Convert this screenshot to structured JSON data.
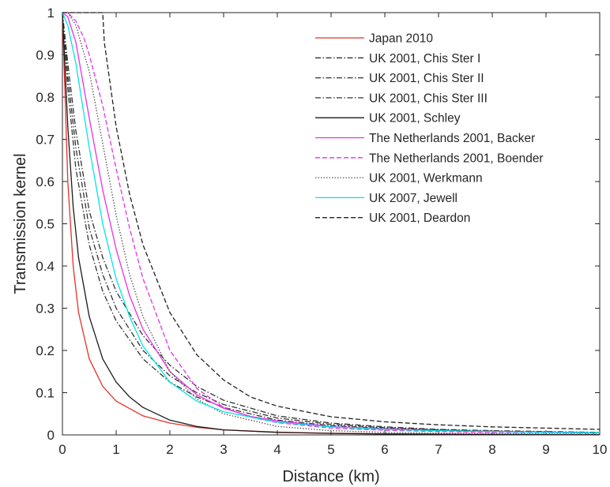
{
  "chart_data": {
    "type": "line",
    "title": "",
    "xlabel": "Distance (km)",
    "ylabel": "Transmission kernel",
    "xlim": [
      0,
      10
    ],
    "ylim": [
      0,
      1
    ],
    "xticks": [
      "0",
      "1",
      "2",
      "3",
      "4",
      "5",
      "6",
      "7",
      "8",
      "9",
      "10"
    ],
    "yticks": [
      "0",
      "0.1",
      "0.2",
      "0.3",
      "0.4",
      "0.5",
      "0.6",
      "0.7",
      "0.8",
      "0.9",
      "1"
    ],
    "grid": false,
    "legend_position": "top-right",
    "series": [
      {
        "name": "Japan 2010",
        "color": "#e8302a",
        "dash": "solid",
        "x": [
          0,
          0.1,
          0.2,
          0.3,
          0.5,
          0.75,
          1,
          1.5,
          2,
          2.5,
          3,
          4,
          5,
          6,
          7,
          8,
          9,
          10
        ],
        "y": [
          1,
          0.6,
          0.4,
          0.29,
          0.18,
          0.115,
          0.08,
          0.045,
          0.028,
          0.018,
          0.012,
          0.0065,
          0.004,
          0.0027,
          0.0019,
          0.0014,
          0.001,
          0.0008
        ]
      },
      {
        "name": "UK 2001, Chis Ster I",
        "color": "#333333",
        "dash": "dashdot",
        "x": [
          0,
          0.1,
          0.25,
          0.5,
          0.75,
          1,
          1.5,
          2,
          2.5,
          3,
          4,
          5,
          6,
          7,
          8,
          9,
          10
        ],
        "y": [
          1,
          0.82,
          0.63,
          0.45,
          0.34,
          0.27,
          0.18,
          0.125,
          0.09,
          0.065,
          0.035,
          0.022,
          0.015,
          0.011,
          0.008,
          0.0065,
          0.005
        ]
      },
      {
        "name": "UK 2001, Chis Ster II",
        "color": "#333333",
        "dash": "dashdot",
        "x": [
          0,
          0.1,
          0.25,
          0.5,
          0.75,
          1,
          1.5,
          2,
          2.5,
          3,
          4,
          5,
          6,
          7,
          8,
          9,
          10
        ],
        "y": [
          1,
          0.85,
          0.68,
          0.49,
          0.38,
          0.3,
          0.2,
          0.14,
          0.1,
          0.072,
          0.04,
          0.025,
          0.017,
          0.012,
          0.009,
          0.007,
          0.0055
        ]
      },
      {
        "name": "UK 2001, Chis Ster III",
        "color": "#333333",
        "dash": "dashdot",
        "x": [
          0,
          0.1,
          0.25,
          0.5,
          0.75,
          1,
          1.5,
          2,
          2.5,
          3,
          4,
          5,
          6,
          7,
          8,
          9,
          10
        ],
        "y": [
          1,
          0.88,
          0.72,
          0.53,
          0.42,
          0.34,
          0.235,
          0.165,
          0.115,
          0.082,
          0.045,
          0.028,
          0.019,
          0.013,
          0.01,
          0.008,
          0.006
        ]
      },
      {
        "name": "UK 2001, Schley",
        "color": "#1a1a1a",
        "dash": "solid",
        "x": [
          0,
          0.1,
          0.2,
          0.3,
          0.5,
          0.75,
          1,
          1.25,
          1.5,
          2,
          2.5,
          3,
          4,
          5,
          6,
          7,
          8,
          9,
          10
        ],
        "y": [
          1,
          0.73,
          0.54,
          0.42,
          0.28,
          0.18,
          0.125,
          0.09,
          0.065,
          0.035,
          0.02,
          0.012,
          0.006,
          0.0035,
          0.0022,
          0.0015,
          0.001,
          0.0008,
          0.0006
        ]
      },
      {
        "name": "The Netherlands 2001, Backer",
        "color": "#e830e8",
        "dash": "solid",
        "x": [
          0,
          0.1,
          0.25,
          0.5,
          0.75,
          1,
          1.25,
          1.5,
          2,
          2.5,
          3,
          3.5,
          4,
          5,
          6,
          7,
          8,
          9,
          10
        ],
        "y": [
          1,
          0.99,
          0.93,
          0.75,
          0.58,
          0.44,
          0.33,
          0.25,
          0.15,
          0.095,
          0.063,
          0.044,
          0.033,
          0.02,
          0.014,
          0.01,
          0.008,
          0.0065,
          0.005
        ]
      },
      {
        "name": "The Netherlands 2001, Boender",
        "color": "#e830e8",
        "dash": "dashed",
        "x": [
          0,
          0.1,
          0.25,
          0.4,
          0.5,
          0.75,
          1,
          1.25,
          1.5,
          2,
          2.5,
          3,
          3.5,
          4,
          5,
          6,
          7,
          8,
          9,
          10
        ],
        "y": [
          1,
          1,
          0.98,
          0.94,
          0.9,
          0.78,
          0.63,
          0.49,
          0.37,
          0.2,
          0.11,
          0.065,
          0.042,
          0.029,
          0.016,
          0.011,
          0.008,
          0.006,
          0.005,
          0.004
        ]
      },
      {
        "name": "UK 2001, Werkmann",
        "color": "#555555",
        "dash": "dotted",
        "x": [
          0,
          0.1,
          0.25,
          0.5,
          0.75,
          1,
          1.25,
          1.5,
          2,
          2.5,
          3,
          4,
          5,
          6,
          7,
          8,
          9,
          10
        ],
        "y": [
          1,
          1,
          0.97,
          0.86,
          0.69,
          0.52,
          0.38,
          0.28,
          0.15,
          0.085,
          0.05,
          0.02,
          0.01,
          0.006,
          0.004,
          0.003,
          0.002,
          0.0015
        ]
      },
      {
        "name": "UK 2007, Jewell",
        "color": "#00e5e5",
        "dash": "solid",
        "x": [
          0,
          0.1,
          0.25,
          0.5,
          0.75,
          1,
          1.25,
          1.5,
          2,
          2.5,
          3,
          4,
          5,
          6,
          7,
          8,
          9,
          10
        ],
        "y": [
          1,
          0.97,
          0.88,
          0.68,
          0.5,
          0.37,
          0.28,
          0.21,
          0.125,
          0.08,
          0.055,
          0.03,
          0.019,
          0.013,
          0.01,
          0.008,
          0.006,
          0.005
        ]
      },
      {
        "name": "UK 2001, Deardon",
        "color": "#222222",
        "dash": "dashed",
        "x": [
          0,
          0.75,
          0.78,
          1,
          1.25,
          1.5,
          2,
          2.5,
          3,
          3.5,
          4,
          5,
          6,
          7,
          8,
          9,
          10
        ],
        "y": [
          1,
          1,
          0.93,
          0.73,
          0.57,
          0.45,
          0.29,
          0.19,
          0.13,
          0.09,
          0.068,
          0.043,
          0.031,
          0.024,
          0.019,
          0.016,
          0.013
        ]
      }
    ]
  }
}
